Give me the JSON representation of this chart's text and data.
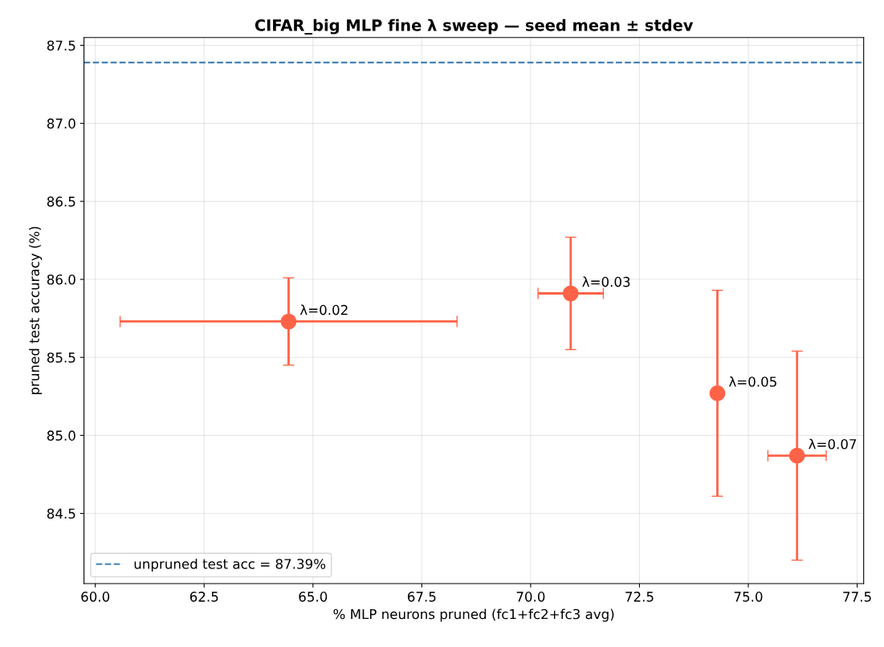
{
  "chart_data": {
    "type": "scatter",
    "title": "CIFAR_big MLP fine λ sweep — seed mean ± stdev",
    "xlabel": "% MLP neurons pruned (fc1+fc2+fc3 avg)",
    "ylabel": "pruned test accuracy (%)",
    "series": [
      {
        "color": "#ff6347",
        "x": [
          64.44,
          70.92,
          74.29,
          76.12
        ],
        "values": [
          85.73,
          85.91,
          85.27,
          84.87
        ],
        "errors": [
          0.28,
          0.36,
          0.66,
          0.67
        ],
        "xerrors": [
          3.87,
          0.75,
          0.1,
          0.67
        ]
      }
    ],
    "annotations": [
      {
        "text": "λ=0.02",
        "x": 64.44,
        "y": 85.73
      },
      {
        "text": "λ=0.03",
        "x": 70.92,
        "y": 85.91
      },
      {
        "text": "λ=0.05",
        "x": 74.29,
        "y": 85.27
      },
      {
        "text": "λ=0.07",
        "x": 76.12,
        "y": 84.87
      }
    ],
    "ref_lines": [
      {
        "axis": "y",
        "value": 87.39,
        "label": "unpruned test acc = 87.39%",
        "color": "#4682b4",
        "line_style": "dashed"
      }
    ],
    "xlim": [
      59.74,
      77.65
    ],
    "ylim": [
      84.05,
      87.55
    ],
    "xticks": [
      {
        "value": 60,
        "label": "60.0"
      },
      62.5,
      {
        "value": 65,
        "label": "65.0"
      },
      67.5,
      {
        "value": 70,
        "label": "70.0"
      },
      72.5,
      {
        "value": 75,
        "label": "75.0"
      },
      77.5
    ],
    "yticks": [
      84.5,
      {
        "value": 85,
        "label": "85.0"
      },
      85.5,
      {
        "value": 86,
        "label": "86.0"
      },
      86.5,
      {
        "value": 87,
        "label": "87.0"
      },
      87.5
    ],
    "grid": true,
    "legend": "lower left",
    "marker": "circle"
  }
}
